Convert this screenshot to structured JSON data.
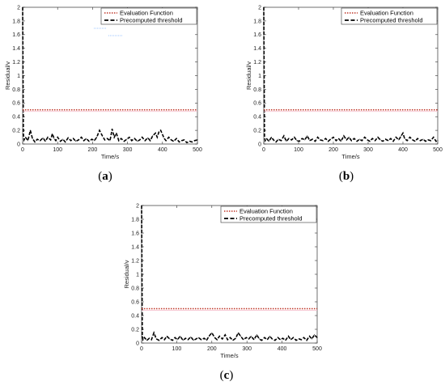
{
  "chart_data": [
    {
      "type": "line",
      "panel_label": "(a)",
      "panel_letter": "a",
      "xlabel": "Time/s",
      "ylabel": "Residual/v",
      "xlim": [
        0,
        500
      ],
      "ylim": [
        0,
        2
      ],
      "xticks": [
        0,
        100,
        200,
        300,
        400,
        500
      ],
      "yticks": [
        0,
        0.2,
        0.4,
        0.6,
        0.8,
        1,
        1.2,
        1.4,
        1.6,
        1.8,
        2
      ],
      "legend": {
        "position": "top-right",
        "entries": [
          "Evaluation Function",
          "Precomputed threshold"
        ]
      },
      "threshold": 0.5,
      "series": [
        {
          "name": "Evaluation Function",
          "color": "#c0392b",
          "style": "dotted",
          "x": [
            0,
            2,
            4,
            8,
            15,
            22,
            28,
            35,
            42,
            50,
            58,
            65,
            72,
            80,
            85,
            90,
            95,
            100,
            108,
            115,
            122,
            130,
            138,
            145,
            152,
            160,
            168,
            175,
            182,
            190,
            198,
            205,
            212,
            220,
            228,
            235,
            242,
            250,
            256,
            262,
            268,
            275,
            282,
            290,
            298,
            305,
            312,
            320,
            328,
            335,
            342,
            350,
            358,
            365,
            372,
            380,
            385,
            390,
            395,
            400,
            405,
            410,
            418,
            425,
            432,
            440,
            448,
            455,
            462,
            470,
            478,
            485,
            492,
            500
          ],
          "y": [
            2.0,
            0.15,
            0.06,
            0.1,
            0.05,
            0.2,
            0.08,
            0.03,
            0.07,
            0.05,
            0.09,
            0.04,
            0.1,
            0.06,
            0.15,
            0.08,
            0.05,
            0.1,
            0.04,
            0.07,
            0.03,
            0.09,
            0.05,
            0.08,
            0.04,
            0.06,
            0.1,
            0.05,
            0.08,
            0.04,
            0.07,
            0.05,
            0.1,
            0.2,
            0.12,
            0.06,
            0.08,
            0.05,
            0.22,
            0.1,
            0.16,
            0.05,
            0.08,
            0.04,
            0.07,
            0.1,
            0.05,
            0.08,
            0.04,
            0.06,
            0.1,
            0.05,
            0.09,
            0.05,
            0.12,
            0.16,
            0.1,
            0.18,
            0.2,
            0.14,
            0.08,
            0.05,
            0.1,
            0.06,
            0.04,
            0.08,
            0.03,
            0.05,
            0.06,
            0.02,
            0.04,
            0.03,
            0.05,
            0.06
          ]
        },
        {
          "name": "Precomputed threshold",
          "color": "#000000",
          "style": "dashed",
          "constant": 0.5
        }
      ]
    },
    {
      "type": "line",
      "panel_label": "(b)",
      "panel_letter": "b",
      "xlabel": "Time/s",
      "ylabel": "Residual/v",
      "xlim": [
        0,
        500
      ],
      "ylim": [
        0,
        2
      ],
      "xticks": [
        0,
        100,
        200,
        300,
        400,
        500
      ],
      "yticks": [
        0,
        0.2,
        0.4,
        0.6,
        0.8,
        1,
        1.2,
        1.4,
        1.6,
        1.8,
        2
      ],
      "legend": {
        "position": "top-right",
        "entries": [
          "Evaluation Function",
          "Precomputed threshold"
        ]
      },
      "threshold": 0.5,
      "series": [
        {
          "name": "Evaluation Function",
          "color": "#c0392b",
          "style": "dotted",
          "x": [
            0,
            2,
            4,
            8,
            15,
            22,
            28,
            35,
            42,
            50,
            58,
            65,
            72,
            80,
            88,
            95,
            102,
            110,
            118,
            125,
            132,
            140,
            148,
            155,
            162,
            170,
            178,
            185,
            192,
            200,
            208,
            215,
            222,
            230,
            238,
            245,
            252,
            260,
            268,
            275,
            282,
            290,
            298,
            305,
            312,
            320,
            328,
            335,
            342,
            350,
            358,
            365,
            372,
            380,
            388,
            395,
            400,
            405,
            412,
            420,
            428,
            435,
            442,
            450,
            458,
            465,
            472,
            480,
            488,
            495,
            500
          ],
          "y": [
            2.0,
            0.12,
            0.05,
            0.08,
            0.04,
            0.1,
            0.06,
            0.03,
            0.07,
            0.05,
            0.12,
            0.04,
            0.08,
            0.06,
            0.1,
            0.05,
            0.04,
            0.08,
            0.06,
            0.12,
            0.05,
            0.07,
            0.04,
            0.1,
            0.06,
            0.05,
            0.08,
            0.04,
            0.07,
            0.1,
            0.05,
            0.08,
            0.04,
            0.12,
            0.06,
            0.1,
            0.05,
            0.08,
            0.04,
            0.07,
            0.05,
            0.1,
            0.06,
            0.04,
            0.08,
            0.05,
            0.1,
            0.06,
            0.04,
            0.07,
            0.05,
            0.08,
            0.04,
            0.1,
            0.06,
            0.12,
            0.16,
            0.08,
            0.05,
            0.1,
            0.06,
            0.04,
            0.08,
            0.05,
            0.07,
            0.04,
            0.06,
            0.05,
            0.1,
            0.04,
            0.05
          ]
        },
        {
          "name": "Precomputed threshold",
          "color": "#000000",
          "style": "dashed",
          "constant": 0.5
        }
      ]
    },
    {
      "type": "line",
      "panel_label": "(c)",
      "panel_letter": "c",
      "xlabel": "Time/s",
      "ylabel": "Residual/v",
      "xlim": [
        0,
        500
      ],
      "ylim": [
        0,
        2
      ],
      "xticks": [
        0,
        100,
        200,
        300,
        400,
        500
      ],
      "yticks": [
        0,
        0.2,
        0.4,
        0.6,
        0.8,
        1,
        1.2,
        1.4,
        1.6,
        1.8,
        2
      ],
      "legend": {
        "position": "top-right",
        "entries": [
          "Evaluation Function",
          "Precomputed threshold"
        ]
      },
      "threshold": 0.5,
      "series": [
        {
          "name": "Evaluation Function",
          "color": "#c0392b",
          "style": "dotted",
          "x": [
            0,
            2,
            4,
            8,
            15,
            22,
            28,
            35,
            42,
            50,
            58,
            65,
            72,
            80,
            88,
            95,
            102,
            110,
            118,
            125,
            132,
            140,
            148,
            155,
            162,
            170,
            178,
            185,
            192,
            200,
            208,
            215,
            222,
            230,
            238,
            245,
            252,
            260,
            268,
            275,
            282,
            290,
            298,
            305,
            312,
            320,
            328,
            335,
            342,
            350,
            358,
            365,
            372,
            380,
            388,
            395,
            402,
            410,
            418,
            425,
            432,
            440,
            448,
            455,
            462,
            470,
            478,
            485,
            492,
            500
          ],
          "y": [
            2.0,
            0.1,
            0.05,
            0.08,
            0.04,
            0.07,
            0.05,
            0.15,
            0.06,
            0.04,
            0.08,
            0.05,
            0.1,
            0.06,
            0.04,
            0.08,
            0.05,
            0.1,
            0.04,
            0.07,
            0.05,
            0.09,
            0.04,
            0.06,
            0.08,
            0.05,
            0.07,
            0.04,
            0.1,
            0.15,
            0.08,
            0.05,
            0.1,
            0.06,
            0.12,
            0.05,
            0.08,
            0.04,
            0.07,
            0.15,
            0.1,
            0.05,
            0.08,
            0.06,
            0.1,
            0.05,
            0.12,
            0.06,
            0.04,
            0.08,
            0.05,
            0.1,
            0.06,
            0.04,
            0.08,
            0.05,
            0.07,
            0.04,
            0.1,
            0.05,
            0.08,
            0.04,
            0.06,
            0.05,
            0.08,
            0.04,
            0.1,
            0.06,
            0.12,
            0.08
          ]
        },
        {
          "name": "Precomputed threshold",
          "color": "#000000",
          "style": "dashed",
          "constant": 0.5
        }
      ]
    }
  ]
}
